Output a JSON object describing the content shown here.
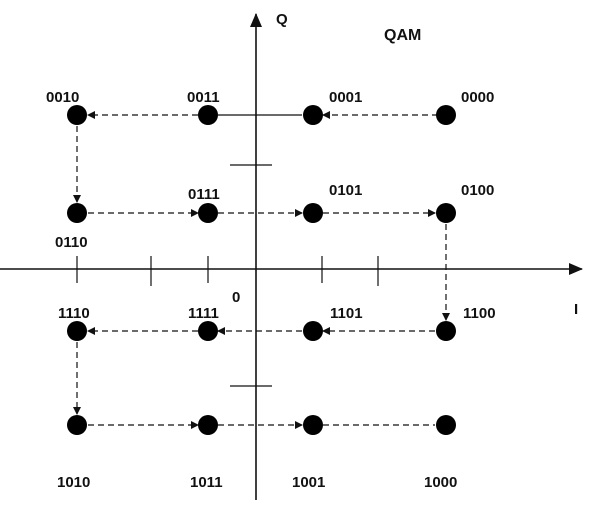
{
  "diagram": {
    "title": "QAM",
    "axis_i_label": "I",
    "axis_q_label": "Q",
    "origin_label": "0"
  },
  "points": [
    {
      "id": "p0010",
      "label": "0010"
    },
    {
      "id": "p0011",
      "label": "0011"
    },
    {
      "id": "p0001",
      "label": "0001"
    },
    {
      "id": "p0000",
      "label": "0000"
    },
    {
      "id": "p0110",
      "label": "0110"
    },
    {
      "id": "p0111",
      "label": "0111"
    },
    {
      "id": "p0101",
      "label": "0101"
    },
    {
      "id": "p0100",
      "label": "0100"
    },
    {
      "id": "p1110",
      "label": "1110"
    },
    {
      "id": "p1111",
      "label": "1111"
    },
    {
      "id": "p1101",
      "label": "1101"
    },
    {
      "id": "p1100",
      "label": "1100"
    },
    {
      "id": "p1010",
      "label": "1010"
    },
    {
      "id": "p1011",
      "label": "1011"
    },
    {
      "id": "p1001",
      "label": "1001"
    },
    {
      "id": "p1000",
      "label": "1000"
    }
  ]
}
